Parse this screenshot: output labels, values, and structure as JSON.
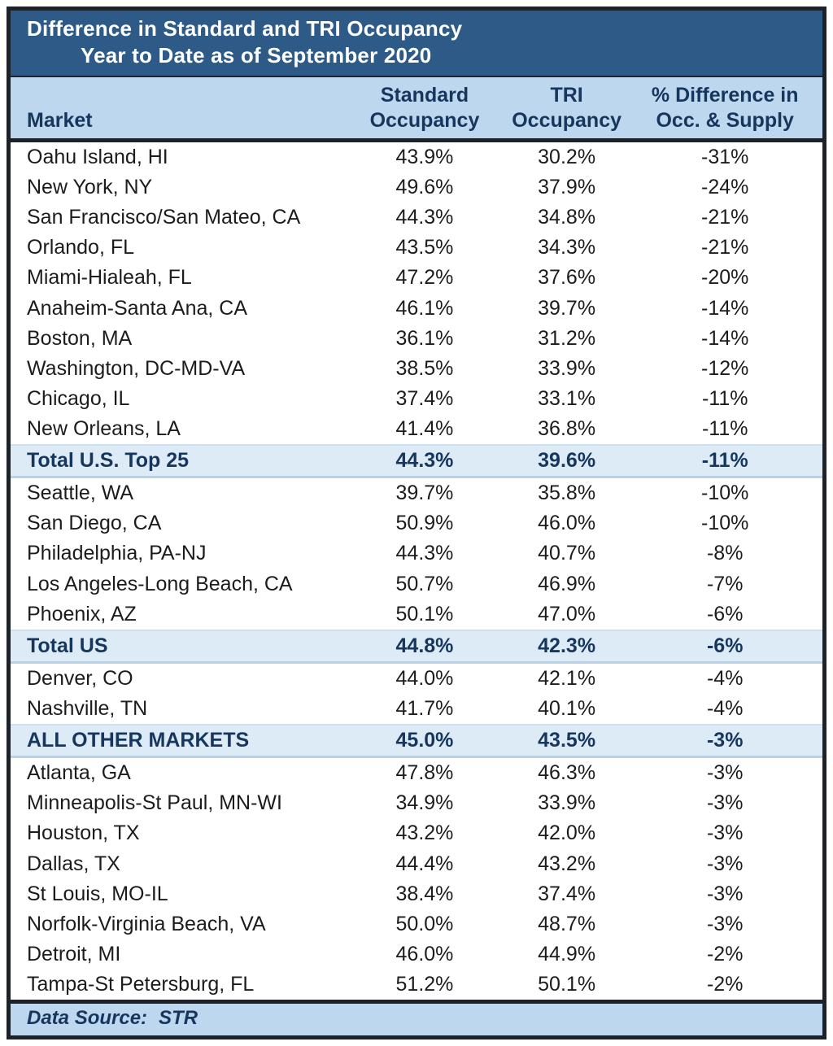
{
  "title": {
    "line1": "Difference in Standard and TRI Occupancy",
    "line2": "Year to Date as of September 2020"
  },
  "header": {
    "market": "Market",
    "standard_line1": "Standard",
    "standard_line2": "Occupancy",
    "tri_line1": "TRI",
    "tri_line2": "Occupancy",
    "diff_line1": "% Difference in",
    "diff_line2": "Occ. & Supply"
  },
  "footer": {
    "label": "Data Source:",
    "value": "STR"
  },
  "colors": {
    "title_bg": "#2d5a87",
    "title_text": "#ffffff",
    "header_bg": "#bdd7ee",
    "header_text": "#17365d",
    "highlight_bg": "#ddebf7",
    "body_text": "#1c1c1c",
    "border": "#1d2229"
  },
  "chart_data": {
    "type": "table",
    "title": "Difference in Standard and TRI Occupancy",
    "subtitle": "Year to Date as of September 2020",
    "columns": [
      "Market",
      "Standard Occupancy",
      "TRI Occupancy",
      "% Difference in Occ. & Supply"
    ],
    "rows": [
      {
        "market": "Oahu Island, HI",
        "standard": "43.9%",
        "tri": "30.2%",
        "diff": "-31%",
        "emphasis": false
      },
      {
        "market": "New York, NY",
        "standard": "49.6%",
        "tri": "37.9%",
        "diff": "-24%",
        "emphasis": false
      },
      {
        "market": "San Francisco/San Mateo, CA",
        "standard": "44.3%",
        "tri": "34.8%",
        "diff": "-21%",
        "emphasis": false
      },
      {
        "market": "Orlando, FL",
        "standard": "43.5%",
        "tri": "34.3%",
        "diff": "-21%",
        "emphasis": false
      },
      {
        "market": "Miami-Hialeah, FL",
        "standard": "47.2%",
        "tri": "37.6%",
        "diff": "-20%",
        "emphasis": false
      },
      {
        "market": "Anaheim-Santa Ana, CA",
        "standard": "46.1%",
        "tri": "39.7%",
        "diff": "-14%",
        "emphasis": false
      },
      {
        "market": "Boston, MA",
        "standard": "36.1%",
        "tri": "31.2%",
        "diff": "-14%",
        "emphasis": false
      },
      {
        "market": "Washington, DC-MD-VA",
        "standard": "38.5%",
        "tri": "33.9%",
        "diff": "-12%",
        "emphasis": false
      },
      {
        "market": "Chicago, IL",
        "standard": "37.4%",
        "tri": "33.1%",
        "diff": "-11%",
        "emphasis": false
      },
      {
        "market": "New Orleans, LA",
        "standard": "41.4%",
        "tri": "36.8%",
        "diff": "-11%",
        "emphasis": false
      },
      {
        "market": "Total U.S. Top 25",
        "standard": "44.3%",
        "tri": "39.6%",
        "diff": "-11%",
        "emphasis": true
      },
      {
        "market": "Seattle, WA",
        "standard": "39.7%",
        "tri": "35.8%",
        "diff": "-10%",
        "emphasis": false
      },
      {
        "market": "San Diego, CA",
        "standard": "50.9%",
        "tri": "46.0%",
        "diff": "-10%",
        "emphasis": false
      },
      {
        "market": "Philadelphia, PA-NJ",
        "standard": "44.3%",
        "tri": "40.7%",
        "diff": "-8%",
        "emphasis": false
      },
      {
        "market": "Los Angeles-Long Beach, CA",
        "standard": "50.7%",
        "tri": "46.9%",
        "diff": "-7%",
        "emphasis": false
      },
      {
        "market": "Phoenix, AZ",
        "standard": "50.1%",
        "tri": "47.0%",
        "diff": "-6%",
        "emphasis": false
      },
      {
        "market": "Total US",
        "standard": "44.8%",
        "tri": "42.3%",
        "diff": "-6%",
        "emphasis": true
      },
      {
        "market": "Denver, CO",
        "standard": "44.0%",
        "tri": "42.1%",
        "diff": "-4%",
        "emphasis": false
      },
      {
        "market": "Nashville, TN",
        "standard": "41.7%",
        "tri": "40.1%",
        "diff": "-4%",
        "emphasis": false
      },
      {
        "market": "ALL OTHER MARKETS",
        "standard": "45.0%",
        "tri": "43.5%",
        "diff": "-3%",
        "emphasis": true
      },
      {
        "market": "Atlanta, GA",
        "standard": "47.8%",
        "tri": "46.3%",
        "diff": "-3%",
        "emphasis": false
      },
      {
        "market": "Minneapolis-St Paul, MN-WI",
        "standard": "34.9%",
        "tri": "33.9%",
        "diff": "-3%",
        "emphasis": false
      },
      {
        "market": "Houston, TX",
        "standard": "43.2%",
        "tri": "42.0%",
        "diff": "-3%",
        "emphasis": false
      },
      {
        "market": "Dallas, TX",
        "standard": "44.4%",
        "tri": "43.2%",
        "diff": "-3%",
        "emphasis": false
      },
      {
        "market": "St Louis, MO-IL",
        "standard": "38.4%",
        "tri": "37.4%",
        "diff": "-3%",
        "emphasis": false
      },
      {
        "market": "Norfolk-Virginia Beach, VA",
        "standard": "50.0%",
        "tri": "48.7%",
        "diff": "-3%",
        "emphasis": false
      },
      {
        "market": "Detroit, MI",
        "standard": "46.0%",
        "tri": "44.9%",
        "diff": "-2%",
        "emphasis": false
      },
      {
        "market": "Tampa-St Petersburg, FL",
        "standard": "51.2%",
        "tri": "50.1%",
        "diff": "-2%",
        "emphasis": false
      }
    ]
  }
}
